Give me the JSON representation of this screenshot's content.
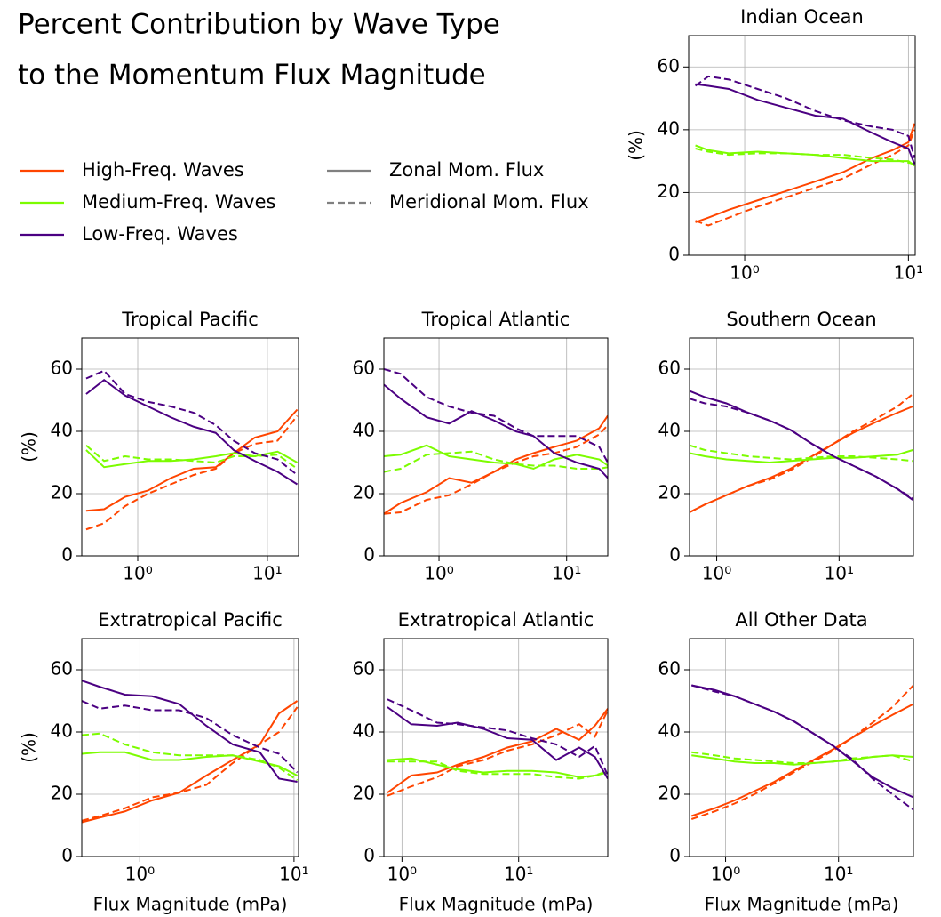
{
  "figure": {
    "title": [
      "Percent Contribution by Wave Type",
      "to the Momentum Flux Magnitude"
    ],
    "legend": [
      {
        "label": "High-Freq. Waves",
        "color": "#ff4500",
        "dash": false
      },
      {
        "label": "Medium-Freq. Waves",
        "color": "#7cfc00",
        "dash": false
      },
      {
        "label": "Low-Freq. Waves",
        "color": "#4b0082",
        "dash": false
      },
      {
        "label": "Zonal Mom. Flux",
        "color": "#808080",
        "dash": false
      },
      {
        "label": "Meridional Mom. Flux",
        "color": "#808080",
        "dash": true
      }
    ]
  },
  "chart_data": [
    {
      "type": "line",
      "title": "Indian Ocean",
      "ylabel": "(%)",
      "log_x": true,
      "grid": true,
      "xlim": [
        0.455,
        11
      ],
      "ylim": [
        0,
        70
      ],
      "yticks": [
        0,
        20,
        40,
        60
      ],
      "xticks": [
        {
          "value": 1,
          "label": "10⁰"
        },
        {
          "value": 10,
          "label": "10¹"
        }
      ],
      "x": [
        0.5,
        0.6,
        0.8,
        1.2,
        1.8,
        2.7,
        4,
        6,
        8,
        10,
        10.9
      ],
      "series": [
        {
          "color": "#ff4500",
          "dash": false,
          "values": [
            10.5,
            12,
            14.5,
            17.5,
            20.5,
            23.5,
            26.5,
            31,
            33.5,
            36,
            42
          ]
        },
        {
          "color": "#ff4500",
          "dash": true,
          "values": [
            11,
            9.5,
            12,
            15.5,
            18.5,
            21.5,
            24.5,
            29,
            32,
            35,
            40
          ]
        },
        {
          "color": "#7cfc00",
          "dash": false,
          "values": [
            35,
            33.5,
            32.5,
            33,
            32.5,
            32,
            31,
            30,
            30,
            30,
            28.5
          ]
        },
        {
          "color": "#7cfc00",
          "dash": true,
          "values": [
            34,
            33,
            32,
            32.5,
            32.5,
            32,
            32,
            31,
            30.5,
            29.5,
            29
          ]
        },
        {
          "color": "#4b0082",
          "dash": false,
          "values": [
            54.5,
            54,
            53,
            49.5,
            47,
            44.5,
            43.5,
            39,
            36,
            34,
            29
          ]
        },
        {
          "color": "#4b0082",
          "dash": true,
          "values": [
            54,
            57,
            56,
            53,
            50,
            46,
            43,
            41,
            40,
            38,
            31
          ]
        }
      ]
    },
    {
      "type": "line",
      "title": "Tropical Pacific",
      "ylabel": "(%)",
      "log_x": true,
      "grid": true,
      "xlim": [
        0.37,
        17.4
      ],
      "ylim": [
        0,
        70
      ],
      "yticks": [
        0,
        20,
        40,
        60
      ],
      "xticks": [
        {
          "value": 1,
          "label": "10⁰"
        },
        {
          "value": 10,
          "label": "10¹"
        }
      ],
      "x": [
        0.4,
        0.55,
        0.8,
        1.2,
        1.8,
        2.7,
        4,
        5.5,
        8,
        12,
        17
      ],
      "series": [
        {
          "color": "#ff4500",
          "dash": false,
          "values": [
            14.5,
            15,
            19,
            21,
            25,
            28,
            28.5,
            33,
            38,
            40,
            47
          ]
        },
        {
          "color": "#ff4500",
          "dash": true,
          "values": [
            8.5,
            10.5,
            16,
            20,
            23,
            26,
            28,
            33,
            36,
            37,
            45
          ]
        },
        {
          "color": "#7cfc00",
          "dash": false,
          "values": [
            34,
            28.5,
            29.5,
            30.5,
            30.5,
            31,
            32,
            33,
            32,
            33.5,
            30
          ]
        },
        {
          "color": "#7cfc00",
          "dash": true,
          "values": [
            35.5,
            30.5,
            32,
            31,
            31,
            30.5,
            30,
            32,
            32,
            32.5,
            28
          ]
        },
        {
          "color": "#4b0082",
          "dash": false,
          "values": [
            52,
            56.5,
            51.5,
            48,
            44.5,
            41.5,
            39.5,
            34,
            30.5,
            27,
            23
          ]
        },
        {
          "color": "#4b0082",
          "dash": true,
          "values": [
            57,
            59.5,
            52,
            49.5,
            48,
            46,
            42,
            37,
            33,
            31,
            26
          ]
        }
      ]
    },
    {
      "type": "line",
      "title": "Tropical Atlantic",
      "log_x": true,
      "grid": true,
      "xlim": [
        0.37,
        21
      ],
      "ylim": [
        0,
        70
      ],
      "yticks": [
        0,
        20,
        40,
        60
      ],
      "xticks": [
        {
          "value": 1,
          "label": "10⁰"
        },
        {
          "value": 10,
          "label": "10¹"
        }
      ],
      "x": [
        0.37,
        0.5,
        0.8,
        1.2,
        1.8,
        2.7,
        4,
        5.5,
        8,
        12,
        18,
        21
      ],
      "series": [
        {
          "color": "#ff4500",
          "dash": false,
          "values": [
            13.5,
            17,
            20.5,
            25,
            23.5,
            27,
            31,
            33,
            35,
            37,
            41,
            45
          ]
        },
        {
          "color": "#ff4500",
          "dash": true,
          "values": [
            13.5,
            14,
            18,
            19.5,
            23,
            27,
            30,
            32,
            33,
            35,
            39,
            42
          ]
        },
        {
          "color": "#7cfc00",
          "dash": false,
          "values": [
            32,
            32.5,
            35.5,
            32,
            31,
            30,
            29.5,
            28,
            31,
            32.5,
            31,
            29
          ]
        },
        {
          "color": "#7cfc00",
          "dash": true,
          "values": [
            27,
            28,
            32.5,
            33,
            33.5,
            31,
            29.5,
            29,
            29,
            28,
            28,
            28.5
          ]
        },
        {
          "color": "#4b0082",
          "dash": false,
          "values": [
            55,
            50.5,
            44.5,
            42.5,
            46.5,
            43.5,
            40,
            38.5,
            33,
            30,
            28,
            25
          ]
        },
        {
          "color": "#4b0082",
          "dash": true,
          "values": [
            60,
            58.5,
            51,
            48,
            46,
            45,
            41,
            38.5,
            38.5,
            38.5,
            35,
            30
          ]
        }
      ]
    },
    {
      "type": "line",
      "title": "Southern Ocean",
      "log_x": true,
      "grid": true,
      "xlim": [
        0.6,
        40.5
      ],
      "ylim": [
        0,
        70
      ],
      "yticks": [
        0,
        20,
        40,
        60
      ],
      "xticks": [
        {
          "value": 1,
          "label": "10⁰"
        },
        {
          "value": 10,
          "label": "10¹"
        }
      ],
      "x": [
        0.6,
        0.8,
        1.2,
        1.8,
        2.7,
        4,
        6,
        9,
        13,
        20,
        30,
        40
      ],
      "series": [
        {
          "color": "#ff4500",
          "dash": false,
          "values": [
            14,
            16.5,
            19.5,
            22.5,
            25,
            28,
            32,
            36,
            39.5,
            43,
            46,
            48
          ]
        },
        {
          "color": "#ff4500",
          "dash": true,
          "values": [
            14,
            16.5,
            19.5,
            22.5,
            24.5,
            27.5,
            31.5,
            36,
            40,
            44,
            48,
            52
          ]
        },
        {
          "color": "#7cfc00",
          "dash": false,
          "values": [
            33,
            32,
            31,
            30.5,
            30,
            30.5,
            31,
            31.5,
            31.5,
            32,
            32.5,
            34
          ]
        },
        {
          "color": "#7cfc00",
          "dash": true,
          "values": [
            35.5,
            34,
            33,
            32,
            31.5,
            31,
            31.5,
            32,
            32,
            31.5,
            31,
            30.5
          ]
        },
        {
          "color": "#4b0082",
          "dash": false,
          "values": [
            53,
            51,
            49,
            46,
            43.5,
            40.5,
            36,
            32,
            29,
            25.5,
            21.5,
            18
          ]
        },
        {
          "color": "#4b0082",
          "dash": true,
          "values": [
            50.5,
            49,
            48,
            46,
            43.5,
            40.5,
            36,
            32,
            29,
            25.5,
            21.5,
            18.5
          ]
        }
      ]
    },
    {
      "type": "line",
      "title": "Extratropical Pacific",
      "ylabel": "(%)",
      "xlabel": "Flux Magnitude (mPa)",
      "log_x": true,
      "grid": true,
      "xlim": [
        0.42,
        10.7
      ],
      "ylim": [
        0,
        70
      ],
      "yticks": [
        0,
        20,
        40,
        60
      ],
      "xticks": [
        {
          "value": 1,
          "label": "10⁰"
        },
        {
          "value": 10,
          "label": "10¹"
        }
      ],
      "x": [
        0.42,
        0.55,
        0.8,
        1.2,
        1.8,
        2.7,
        4,
        6,
        8,
        10.5
      ],
      "series": [
        {
          "color": "#ff4500",
          "dash": false,
          "values": [
            11,
            12.5,
            14.5,
            18,
            20.5,
            26,
            31,
            36,
            46,
            50
          ]
        },
        {
          "color": "#ff4500",
          "dash": true,
          "values": [
            11.5,
            13,
            15.5,
            19,
            20.5,
            23,
            30,
            36,
            40,
            48
          ]
        },
        {
          "color": "#7cfc00",
          "dash": false,
          "values": [
            33,
            33.5,
            33.5,
            31,
            31,
            32,
            32.5,
            30.5,
            29,
            26
          ]
        },
        {
          "color": "#7cfc00",
          "dash": true,
          "values": [
            39,
            39.5,
            36,
            33.5,
            32.5,
            32.5,
            32.5,
            31,
            28.5,
            24.5
          ]
        },
        {
          "color": "#4b0082",
          "dash": false,
          "values": [
            56.5,
            54.5,
            52,
            51.5,
            49,
            42,
            36,
            33.5,
            25,
            24
          ]
        },
        {
          "color": "#4b0082",
          "dash": true,
          "values": [
            50,
            47.5,
            48.5,
            47,
            47,
            44.5,
            39,
            35,
            33,
            27
          ]
        }
      ]
    },
    {
      "type": "line",
      "title": "Extratropical Atlantic",
      "xlabel": "Flux Magnitude (mPa)",
      "log_x": true,
      "grid": true,
      "xlim": [
        0.7,
        58
      ],
      "ylim": [
        0,
        70
      ],
      "yticks": [
        0,
        20,
        40,
        60
      ],
      "xticks": [
        {
          "value": 1,
          "label": "10⁰"
        },
        {
          "value": 10,
          "label": "10¹"
        }
      ],
      "x": [
        0.75,
        1.2,
        2,
        3,
        5,
        8,
        13,
        21,
        33,
        45,
        58
      ],
      "series": [
        {
          "color": "#ff4500",
          "dash": false,
          "values": [
            20.5,
            26,
            27,
            29.5,
            32,
            35,
            37,
            41,
            37.5,
            42,
            47.5
          ]
        },
        {
          "color": "#ff4500",
          "dash": true,
          "values": [
            19.5,
            22.5,
            25.5,
            29,
            31,
            34,
            36,
            39,
            42.5,
            38.5,
            47
          ]
        },
        {
          "color": "#7cfc00",
          "dash": false,
          "values": [
            31,
            31.5,
            29.5,
            28,
            27,
            27.5,
            27.5,
            27,
            25.5,
            26,
            27
          ]
        },
        {
          "color": "#7cfc00",
          "dash": true,
          "values": [
            30.5,
            30.5,
            30.5,
            27.5,
            26.5,
            26.5,
            26.5,
            25.5,
            25,
            26,
            27.5
          ]
        },
        {
          "color": "#4b0082",
          "dash": false,
          "values": [
            48,
            42.5,
            42,
            43,
            41,
            38,
            37.5,
            31,
            35,
            32,
            25
          ]
        },
        {
          "color": "#4b0082",
          "dash": true,
          "values": [
            50.5,
            47,
            43,
            42.5,
            41.5,
            40.5,
            38,
            36,
            32,
            35.5,
            26
          ]
        }
      ]
    },
    {
      "type": "line",
      "title": "All Other Data",
      "xlabel": "Flux Magnitude (mPa)",
      "log_x": true,
      "grid": true,
      "xlim": [
        0.48,
        46
      ],
      "ylim": [
        0,
        70
      ],
      "yticks": [
        0,
        20,
        40,
        60
      ],
      "xticks": [
        {
          "value": 1,
          "label": "10⁰"
        },
        {
          "value": 10,
          "label": "10¹"
        }
      ],
      "x": [
        0.5,
        0.8,
        1.2,
        1.8,
        2.7,
        4,
        6,
        9,
        13,
        20,
        30,
        46
      ],
      "series": [
        {
          "color": "#ff4500",
          "dash": false,
          "values": [
            13,
            15.5,
            18,
            21,
            24,
            27.5,
            31,
            34.5,
            38,
            42,
            45.5,
            49
          ]
        },
        {
          "color": "#ff4500",
          "dash": true,
          "values": [
            12,
            14.5,
            17,
            20,
            23.5,
            27,
            30.5,
            34,
            38,
            43,
            48,
            55
          ]
        },
        {
          "color": "#7cfc00",
          "dash": false,
          "values": [
            32.5,
            31.5,
            30.5,
            30,
            30,
            29.5,
            30,
            30.5,
            31,
            32,
            32.5,
            32
          ]
        },
        {
          "color": "#7cfc00",
          "dash": true,
          "values": [
            33.5,
            32.5,
            31.5,
            31,
            30.5,
            30,
            30,
            30.5,
            31.5,
            32,
            32.5,
            30.5
          ]
        },
        {
          "color": "#4b0082",
          "dash": false,
          "values": [
            55,
            53.5,
            51.5,
            49,
            46.5,
            43.5,
            39.5,
            35.5,
            31,
            25.5,
            22,
            19
          ]
        },
        {
          "color": "#4b0082",
          "dash": true,
          "values": [
            55,
            53,
            51.5,
            49,
            46.5,
            43.5,
            39.5,
            35.5,
            31.5,
            25,
            20,
            15
          ]
        }
      ]
    }
  ]
}
